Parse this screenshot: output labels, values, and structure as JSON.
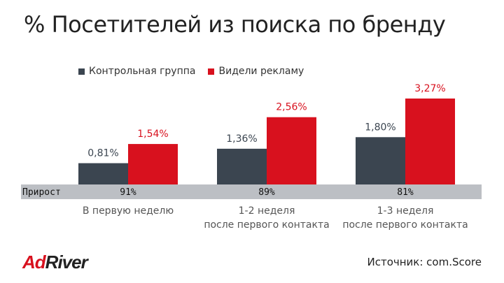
{
  "title": "% Посетителей из поиска по бренду",
  "legend": {
    "control_label": "Контрольная группа",
    "ads_label": "Видели рекламу"
  },
  "colors": {
    "control": "#3b4550",
    "ads": "#d8111e",
    "growth_band": "#bcbfc4"
  },
  "growth": {
    "label": "Прирост",
    "values": [
      "91%",
      "89%",
      "81%"
    ]
  },
  "chart_data": {
    "type": "bar",
    "title": "% Посетителей из поиска по бренду",
    "categories": [
      [
        "В первую неделю"
      ],
      [
        "1-2 неделя",
        "после первого контакта"
      ],
      [
        "1-3 неделя",
        "после первого контакта"
      ]
    ],
    "series": [
      {
        "name": "Контрольная группа",
        "values": [
          0.81,
          1.36,
          1.8
        ],
        "labels": [
          "0,81%",
          "1,36%",
          "1,80%"
        ]
      },
      {
        "name": "Видели рекламу",
        "values": [
          1.54,
          2.56,
          3.27
        ],
        "labels": [
          "1,54%",
          "2,56%",
          "3,27%"
        ]
      }
    ],
    "ylim": [
      0,
      3.27
    ],
    "legend": "top",
    "grid": false
  },
  "source": "Источник: com.Score",
  "logo": {
    "ad": "Ad",
    "river": "River"
  }
}
